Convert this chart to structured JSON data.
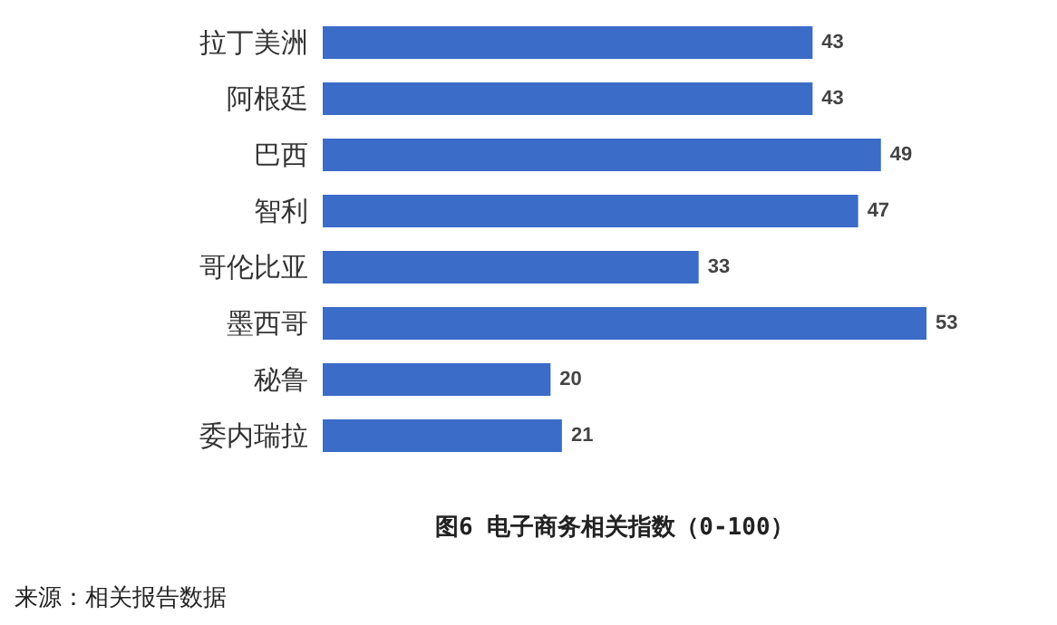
{
  "chart_data": {
    "type": "bar",
    "orientation": "horizontal",
    "title": "图6 电子商务相关指数（0-100）",
    "categories": [
      "拉丁美洲",
      "阿根廷",
      "巴西",
      "智利",
      "哥伦比亚",
      "墨西哥",
      "秘鲁",
      "委内瑞拉"
    ],
    "values": [
      43,
      43,
      49,
      47,
      33,
      53,
      20,
      21
    ],
    "color": "#3a6cc8",
    "data_labels": true,
    "annotations": [
      "来源：相关报告数据"
    ]
  }
}
